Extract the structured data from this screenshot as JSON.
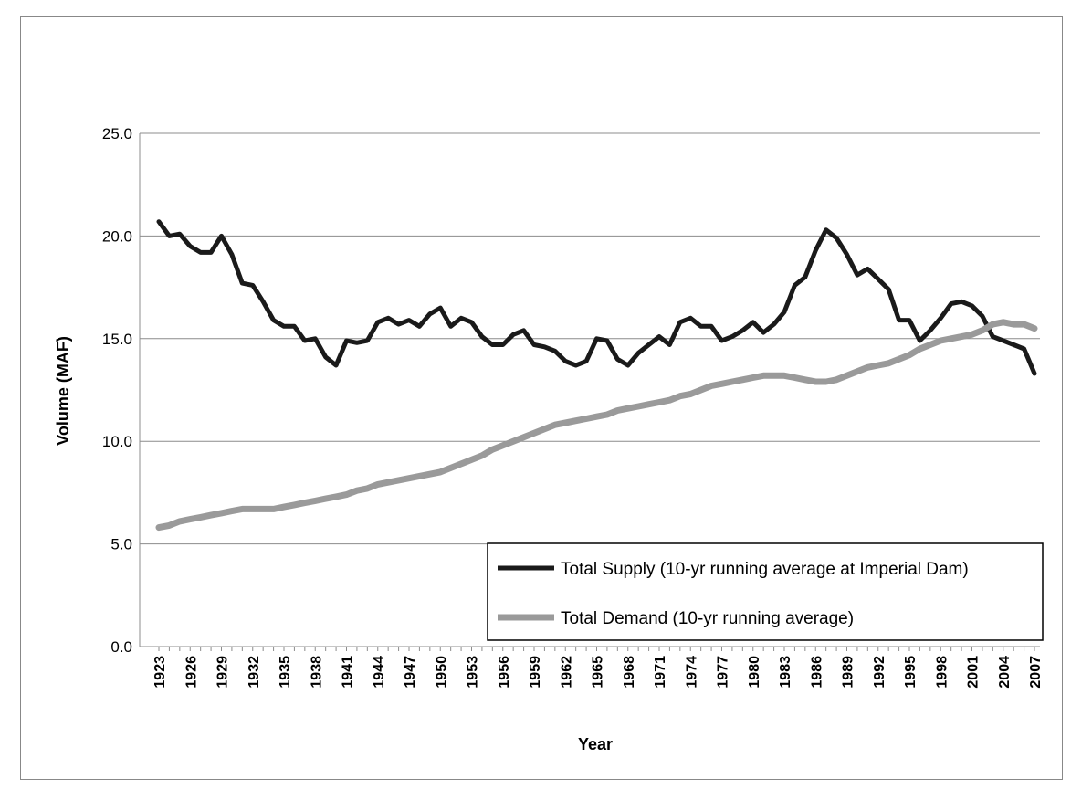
{
  "chart_data": {
    "type": "line",
    "xlabel": "Year",
    "ylabel": "Volume (MAF)",
    "ylim": [
      0,
      25
    ],
    "yticks": [
      "0.0",
      "5.0",
      "10.0",
      "15.0",
      "20.0",
      "25.0"
    ],
    "xticks": [
      "1923",
      "1926",
      "1929",
      "1932",
      "1935",
      "1938",
      "1941",
      "1944",
      "1947",
      "1950",
      "1953",
      "1956",
      "1959",
      "1962",
      "1965",
      "1968",
      "1971",
      "1974",
      "1977",
      "1980",
      "1983",
      "1986",
      "1989",
      "1992",
      "1995",
      "1998",
      "2001",
      "2004",
      "2007"
    ],
    "x_start": 1923,
    "x_end": 2007,
    "grid": "horizontal",
    "legend_position": "bottom-right",
    "series": [
      {
        "name": "Total Supply (10-yr running average at Imperial Dam)",
        "color": "#1a1a1a",
        "values": [
          20.7,
          20.0,
          20.1,
          19.5,
          19.2,
          19.2,
          20.0,
          19.1,
          17.7,
          17.6,
          16.8,
          15.9,
          15.6,
          15.6,
          14.9,
          15.0,
          14.1,
          13.7,
          14.9,
          14.8,
          14.9,
          15.8,
          16.0,
          15.7,
          15.9,
          15.6,
          16.2,
          16.5,
          15.6,
          16.0,
          15.8,
          15.1,
          14.7,
          14.7,
          15.2,
          15.4,
          14.7,
          14.6,
          14.4,
          13.9,
          13.7,
          13.9,
          15.0,
          14.9,
          14.0,
          13.7,
          14.3,
          14.7,
          15.1,
          14.7,
          15.8,
          16.0,
          15.6,
          15.6,
          14.9,
          15.1,
          15.4,
          15.8,
          15.3,
          15.7,
          16.3,
          17.6,
          18.0,
          19.3,
          20.3,
          19.9,
          19.1,
          18.1,
          18.4,
          17.9,
          17.4,
          15.9,
          15.9,
          14.9,
          15.4,
          16.0,
          16.7,
          16.8,
          16.6,
          16.1,
          15.1,
          14.9,
          14.7,
          14.5,
          13.3
        ]
      },
      {
        "name": "Total Demand (10-yr running average)",
        "color": "#9a9a9a",
        "values": [
          5.8,
          5.9,
          6.1,
          6.2,
          6.3,
          6.4,
          6.5,
          6.6,
          6.7,
          6.7,
          6.7,
          6.7,
          6.8,
          6.9,
          7.0,
          7.1,
          7.2,
          7.3,
          7.4,
          7.6,
          7.7,
          7.9,
          8.0,
          8.1,
          8.2,
          8.3,
          8.4,
          8.5,
          8.7,
          8.9,
          9.1,
          9.3,
          9.6,
          9.8,
          10.0,
          10.2,
          10.4,
          10.6,
          10.8,
          10.9,
          11.0,
          11.1,
          11.2,
          11.3,
          11.5,
          11.6,
          11.7,
          11.8,
          11.9,
          12.0,
          12.2,
          12.3,
          12.5,
          12.7,
          12.8,
          12.9,
          13.0,
          13.1,
          13.2,
          13.2,
          13.2,
          13.1,
          13.0,
          12.9,
          12.9,
          13.0,
          13.2,
          13.4,
          13.6,
          13.7,
          13.8,
          14.0,
          14.2,
          14.5,
          14.7,
          14.9,
          15.0,
          15.1,
          15.2,
          15.4,
          15.7,
          15.8,
          15.7,
          15.7,
          15.5
        ]
      }
    ]
  }
}
